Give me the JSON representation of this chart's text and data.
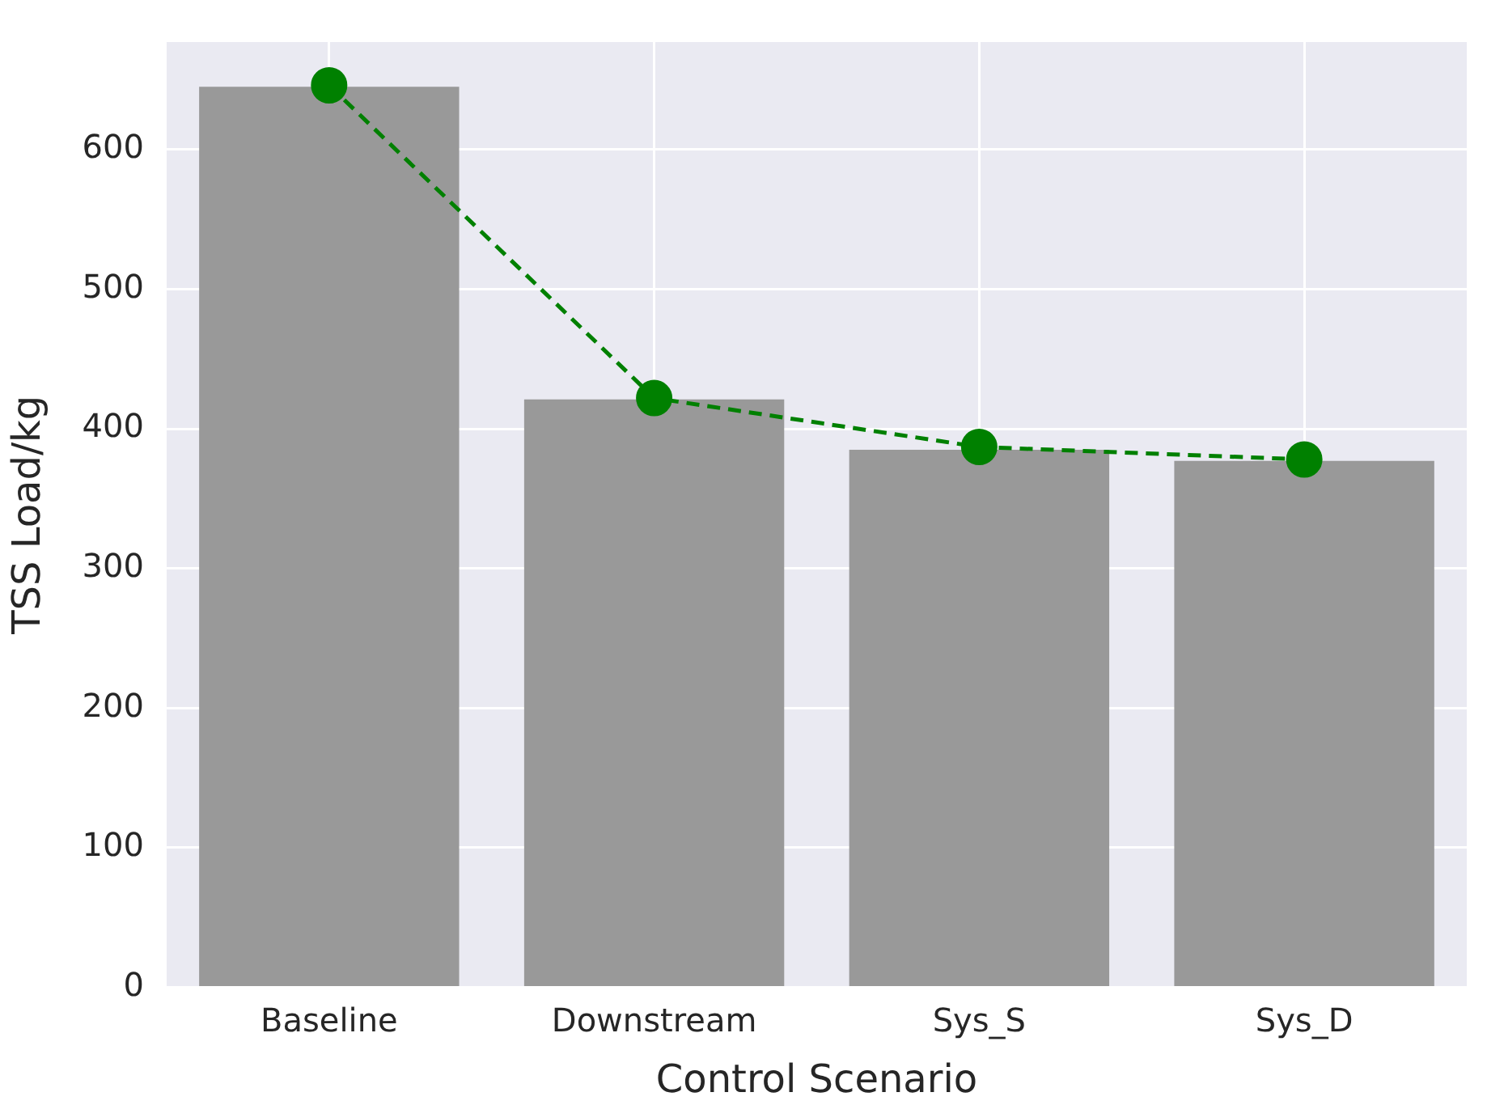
{
  "chart_data": {
    "type": "bar",
    "xlabel": "Control Scenario",
    "ylabel": "TSS Load/kg",
    "categories": [
      "Baseline",
      "Downstream",
      "Sys_S",
      "Sys_D"
    ],
    "series": [
      {
        "color": "#999999",
        "values": [
          645,
          421,
          385,
          377
        ]
      },
      {
        "type": "line",
        "color": "#008000",
        "values": [
          646,
          422,
          387,
          378
        ]
      }
    ],
    "marker": "circle",
    "line_style": "dashed",
    "ylim": [
      0,
      677
    ],
    "yticks": [
      0,
      100,
      200,
      300,
      400,
      500,
      600
    ],
    "grid": true
  }
}
